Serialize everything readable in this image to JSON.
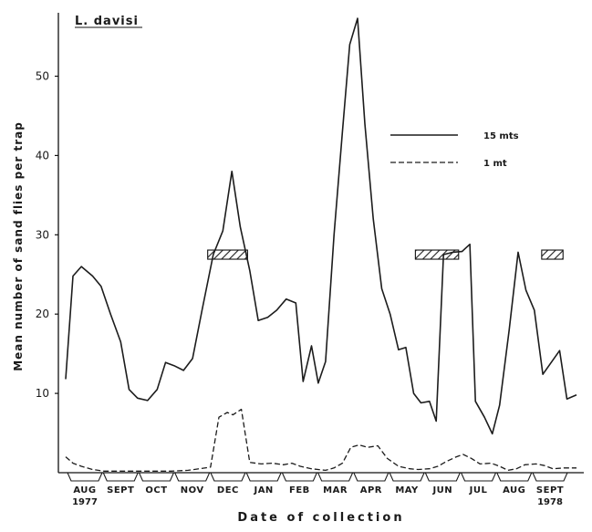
{
  "chart_data": {
    "type": "line",
    "title": "L. davisi",
    "xlabel": "Date of collection",
    "ylabel": "Mean number of sand flies per trap",
    "ylim": [
      0,
      58
    ],
    "yticks": [
      10,
      20,
      30,
      40,
      50
    ],
    "grid": false,
    "legend_position": "upper-right",
    "x_tick_labels": [
      {
        "label": "AUG",
        "year": "1977",
        "x": 0
      },
      {
        "label": "SEPT",
        "year": "",
        "x": 1
      },
      {
        "label": "OCT",
        "year": "",
        "x": 2
      },
      {
        "label": "NOV",
        "year": "",
        "x": 3
      },
      {
        "label": "DEC",
        "year": "",
        "x": 4
      },
      {
        "label": "JAN",
        "year": "",
        "x": 5
      },
      {
        "label": "FEB",
        "year": "",
        "x": 6
      },
      {
        "label": "MAR",
        "year": "",
        "x": 7
      },
      {
        "label": "APR",
        "year": "",
        "x": 8
      },
      {
        "label": "MAY",
        "year": "",
        "x": 9
      },
      {
        "label": "JUN",
        "year": "",
        "x": 10
      },
      {
        "label": "JUL",
        "year": "",
        "x": 11
      },
      {
        "label": "AUG",
        "year": "",
        "x": 12
      },
      {
        "label": "SEPT",
        "year": "1978",
        "x": 13
      }
    ],
    "series": [
      {
        "name": "15 mts",
        "style": "solid",
        "points": [
          [
            -0.18,
            11.8
          ],
          [
            -0.05,
            24.8
          ],
          [
            0.1,
            26.0
          ],
          [
            0.3,
            24.8
          ],
          [
            0.45,
            23.5
          ],
          [
            0.62,
            20.0
          ],
          [
            0.8,
            16.5
          ],
          [
            0.95,
            10.5
          ],
          [
            1.1,
            9.4
          ],
          [
            1.28,
            9.1
          ],
          [
            1.45,
            10.5
          ],
          [
            1.6,
            13.9
          ],
          [
            1.75,
            13.5
          ],
          [
            1.92,
            12.9
          ],
          [
            2.08,
            14.4
          ],
          [
            2.25,
            20.5
          ],
          [
            2.45,
            27.5
          ],
          [
            2.62,
            30.5
          ],
          [
            2.78,
            38.0
          ],
          [
            2.93,
            31.0
          ],
          [
            3.1,
            25.5
          ],
          [
            3.25,
            19.2
          ],
          [
            3.42,
            19.6
          ],
          [
            3.58,
            20.5
          ],
          [
            3.75,
            21.9
          ],
          [
            3.92,
            21.4
          ],
          [
            4.05,
            11.5
          ],
          [
            4.2,
            16.0
          ],
          [
            4.32,
            11.3
          ],
          [
            4.45,
            14.0
          ],
          [
            4.6,
            30.0
          ],
          [
            4.75,
            43.0
          ],
          [
            4.88,
            54.0
          ],
          [
            5.02,
            57.3
          ],
          [
            5.15,
            44.0
          ],
          [
            5.3,
            32.0
          ],
          [
            5.45,
            23.2
          ],
          [
            5.6,
            20.0
          ],
          [
            5.75,
            15.5
          ],
          [
            5.88,
            15.8
          ],
          [
            6.02,
            10.0
          ],
          [
            6.15,
            8.8
          ],
          [
            6.3,
            9.0
          ],
          [
            6.42,
            6.5
          ],
          [
            6.55,
            27.5
          ],
          [
            6.72,
            27.8
          ],
          [
            6.88,
            27.9
          ],
          [
            7.02,
            28.8
          ],
          [
            7.12,
            9.0
          ],
          [
            7.28,
            7.0
          ],
          [
            7.42,
            4.9
          ],
          [
            7.55,
            8.5
          ],
          [
            7.72,
            18.0
          ],
          [
            7.88,
            27.8
          ],
          [
            8.02,
            23.0
          ],
          [
            8.17,
            20.5
          ],
          [
            8.32,
            12.4
          ],
          [
            8.48,
            14.0
          ],
          [
            8.62,
            15.4
          ],
          [
            8.75,
            9.3
          ],
          [
            8.92,
            9.8
          ]
        ]
      },
      {
        "name": "1 mt",
        "style": "dashed",
        "points": [
          [
            -0.18,
            2.0
          ],
          [
            -0.05,
            1.2
          ],
          [
            0.1,
            0.8
          ],
          [
            0.3,
            0.4
          ],
          [
            0.5,
            0.2
          ],
          [
            0.8,
            0.2
          ],
          [
            1.1,
            0.2
          ],
          [
            1.4,
            0.2
          ],
          [
            1.7,
            0.2
          ],
          [
            2.0,
            0.3
          ],
          [
            2.2,
            0.5
          ],
          [
            2.4,
            0.7
          ],
          [
            2.55,
            7.0
          ],
          [
            2.7,
            7.6
          ],
          [
            2.8,
            7.3
          ],
          [
            2.95,
            8.0
          ],
          [
            3.1,
            1.3
          ],
          [
            3.3,
            1.1
          ],
          [
            3.5,
            1.2
          ],
          [
            3.7,
            1.0
          ],
          [
            3.85,
            1.2
          ],
          [
            4.0,
            0.8
          ],
          [
            4.2,
            0.5
          ],
          [
            4.45,
            0.3
          ],
          [
            4.6,
            0.6
          ],
          [
            4.75,
            1.2
          ],
          [
            4.9,
            3.2
          ],
          [
            5.05,
            3.5
          ],
          [
            5.2,
            3.2
          ],
          [
            5.38,
            3.4
          ],
          [
            5.55,
            1.8
          ],
          [
            5.75,
            0.8
          ],
          [
            5.95,
            0.5
          ],
          [
            6.1,
            0.4
          ],
          [
            6.3,
            0.5
          ],
          [
            6.45,
            0.8
          ],
          [
            6.6,
            1.4
          ],
          [
            6.78,
            2.0
          ],
          [
            6.9,
            2.3
          ],
          [
            7.05,
            1.8
          ],
          [
            7.2,
            1.1
          ],
          [
            7.4,
            1.2
          ],
          [
            7.55,
            0.8
          ],
          [
            7.7,
            0.3
          ],
          [
            7.85,
            0.5
          ],
          [
            8.0,
            1.0
          ],
          [
            8.2,
            1.1
          ],
          [
            8.35,
            0.9
          ],
          [
            8.5,
            0.5
          ],
          [
            8.7,
            0.6
          ],
          [
            8.92,
            0.6
          ]
        ]
      }
    ],
    "hatched_bars": [
      {
        "x_start": 2.35,
        "x_end": 3.06,
        "y": 27.5
      },
      {
        "x_start": 6.05,
        "x_end": 6.82,
        "y": 27.5
      },
      {
        "x_start": 8.3,
        "x_end": 8.68,
        "y": 27.5
      }
    ]
  }
}
